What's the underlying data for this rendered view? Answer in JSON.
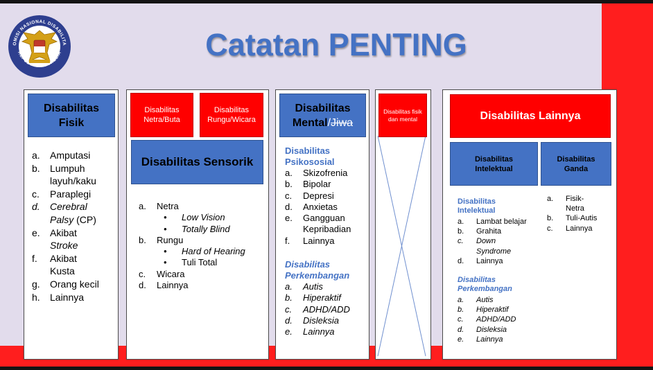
{
  "slide": {
    "title": "Catatan PENTING",
    "colors": {
      "blue": "#4472c4",
      "red": "#ff0000",
      "background": "#e2dcec"
    },
    "logo": {
      "icon": "garuda-emblem",
      "ring_text_top": "KOMISI NASIONAL DISABILITAS",
      "ring_text_bottom": "REPUBLIK INDONESIA"
    }
  },
  "fisik": {
    "header_line1": "Disabilitas",
    "header_line2": "Fisik",
    "items": [
      {
        "m": "a.",
        "t": "Amputasi"
      },
      {
        "m": "b.",
        "t": "Lumpuh"
      },
      {
        "m": "",
        "t": "layuh/kaku"
      },
      {
        "m": "c.",
        "t": "Paraplegi"
      },
      {
        "m": "d.",
        "t": "Cerebral"
      },
      {
        "m": "",
        "t": "Palsy"
      },
      {
        "m": "e.",
        "t": "Akibat"
      },
      {
        "m": "",
        "t": "Stroke"
      },
      {
        "m": "f.",
        "t": "Akibat"
      },
      {
        "m": "",
        "t": "Kusta"
      },
      {
        "m": "g.",
        "t": "Orang kecil"
      },
      {
        "m": "h.",
        "t": "Lainnya"
      }
    ],
    "cp": " (CP)"
  },
  "sensorik": {
    "netra_btn": "Disabilitas Netra/Buta",
    "rungu_btn": "Disabilitas Rungu/Wicara",
    "header": "Disabilitas Sensorik",
    "a_m": "a.",
    "a": "Netra",
    "a_sub": [
      "Low Vision",
      "Totally Blind"
    ],
    "b_m": "b.",
    "b": "Rungu",
    "b_sub": [
      "Hard of Hearing",
      "Tuli Total"
    ],
    "c_m": "c.",
    "c": "Wicara",
    "d_m": "d.",
    "d": "Lainnya"
  },
  "mental": {
    "header_line1": "Disabilitas",
    "header_line2": "Mental",
    "header_struck": "Jiwa",
    "psiko_title1": "Disabilitas",
    "psiko_title2": "Psikososial",
    "psiko_items": [
      {
        "m": "a.",
        "t": "Skizofrenia"
      },
      {
        "m": "b.",
        "t": "Bipolar"
      },
      {
        "m": "c.",
        "t": "Depresi"
      },
      {
        "m": "d.",
        "t": "Anxietas"
      },
      {
        "m": "e.",
        "t": "Gangguan"
      },
      {
        "m": "",
        "t": "Kepribadian"
      },
      {
        "m": "f.",
        "t": "Lainnya"
      }
    ],
    "perk_title1": "Disabilitas",
    "perk_title2": "Perkembangan",
    "perk_items": [
      {
        "m": "a.",
        "t": "Autis"
      },
      {
        "m": "b.",
        "t": "Hiperaktif"
      },
      {
        "m": "c.",
        "t": "ADHD/ADD"
      },
      {
        "m": "d.",
        "t": "Disleksia"
      },
      {
        "m": "e.",
        "t": "Lainnya"
      }
    ]
  },
  "crossed": {
    "box_label": "Disabilitas fisik dan mental"
  },
  "lainnya": {
    "header": "Disabilitas Lainnya",
    "intelektual_btn": "Disabilitas Intelektual",
    "ganda_btn": "Disabilitas Ganda",
    "intel_title1": "Disabilitas",
    "intel_title2": "Intelektual",
    "intel_items": [
      {
        "m": "a.",
        "t": "Lambat belajar"
      },
      {
        "m": "b.",
        "t": "Grahita"
      },
      {
        "m": "c.",
        "t": "Down"
      },
      {
        "m": "",
        "t": "Syndrome"
      },
      {
        "m": "d.",
        "t": "Lainnya"
      }
    ],
    "perk_title1": "Disabilitas",
    "perk_title2": "Perkembangan",
    "perk_items": [
      {
        "m": "a.",
        "t": "Autis"
      },
      {
        "m": "b.",
        "t": "Hiperaktif"
      },
      {
        "m": "c.",
        "t": "ADHD/ADD"
      },
      {
        "m": "d.",
        "t": "Disleksia"
      },
      {
        "m": "e.",
        "t": "Lainnya"
      }
    ],
    "ganda_items": [
      {
        "m": "a.",
        "t": "Fisik-"
      },
      {
        "m": "",
        "t": "Netra"
      },
      {
        "m": "b.",
        "t": "Tuli-Autis"
      },
      {
        "m": "c.",
        "t": "Lainnya"
      }
    ]
  }
}
